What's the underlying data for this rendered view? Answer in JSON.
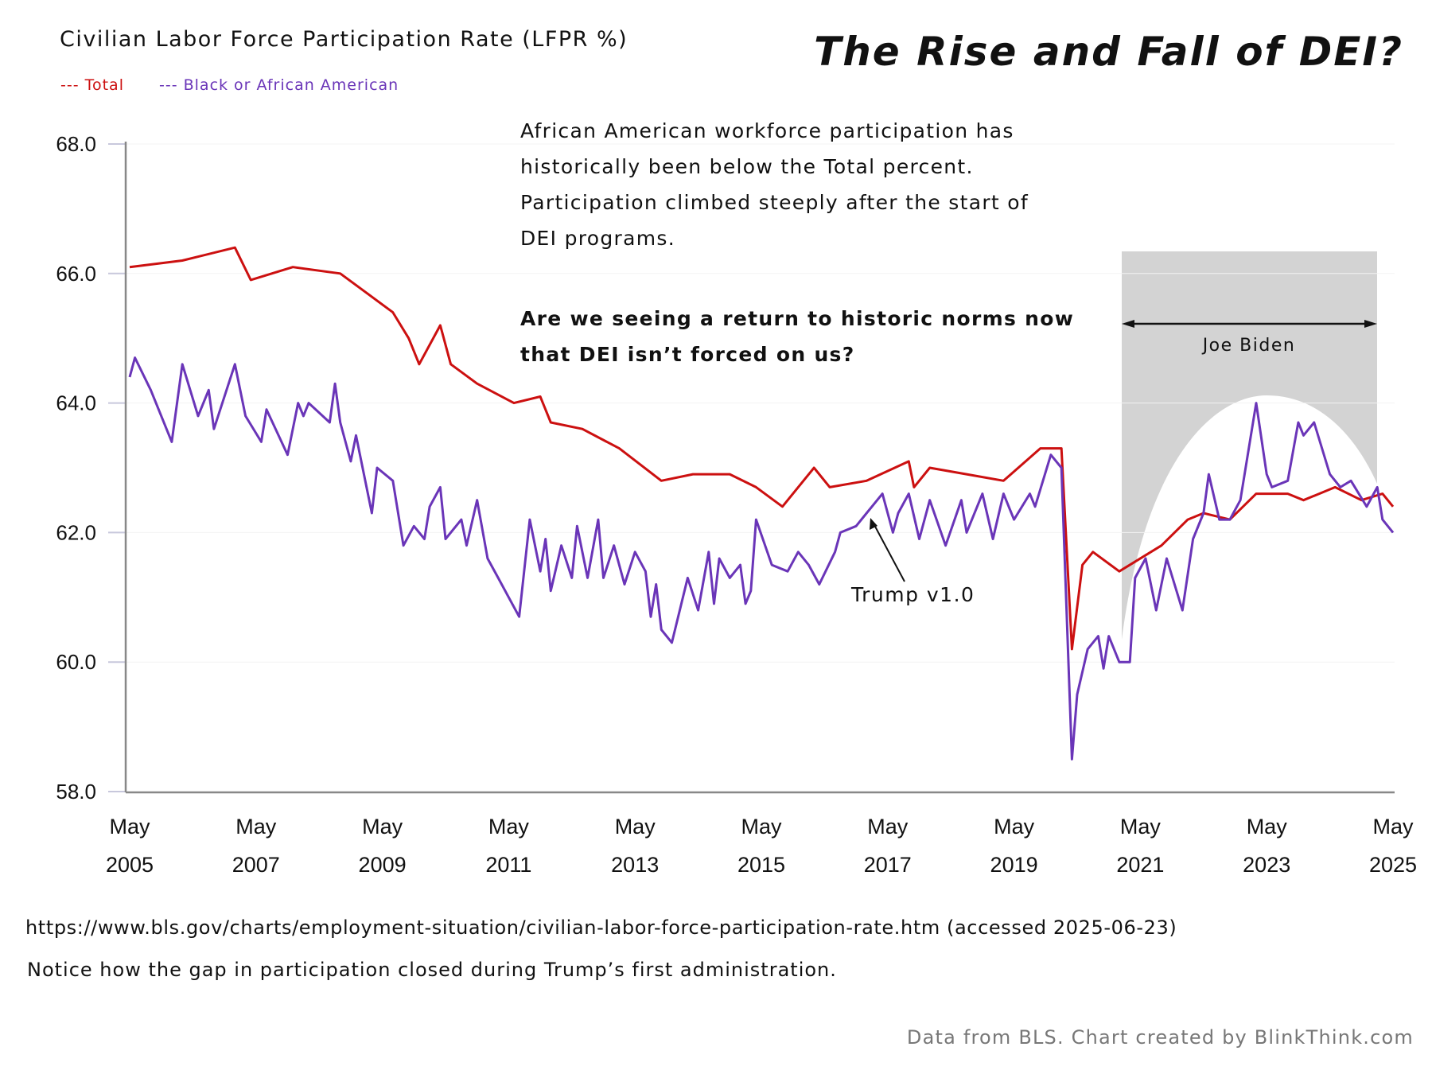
{
  "chart_data": {
    "type": "line",
    "title": "Civilian Labor Force Participation Rate (LFPR %)",
    "headline": "The Rise and Fall of DEI?",
    "x_unit": "months since May 2005",
    "xlim": [
      0,
      240
    ],
    "ylim": [
      58,
      68
    ],
    "y_ticks": [
      "58.0",
      "60.0",
      "62.0",
      "64.0",
      "66.0",
      "68.0"
    ],
    "x_ticks": [
      {
        "month": 0,
        "top": "May",
        "bottom": "2005"
      },
      {
        "month": 24,
        "top": "May",
        "bottom": "2007"
      },
      {
        "month": 48,
        "top": "May",
        "bottom": "2009"
      },
      {
        "month": 72,
        "top": "May",
        "bottom": "2011"
      },
      {
        "month": 96,
        "top": "May",
        "bottom": "2013"
      },
      {
        "month": 120,
        "top": "May",
        "bottom": "2015"
      },
      {
        "month": 144,
        "top": "May",
        "bottom": "2017"
      },
      {
        "month": 168,
        "top": "May",
        "bottom": "2019"
      },
      {
        "month": 192,
        "top": "May",
        "bottom": "2021"
      },
      {
        "month": 216,
        "top": "May",
        "bottom": "2023"
      },
      {
        "month": 240,
        "top": "May",
        "bottom": "2025"
      }
    ],
    "legend": [
      {
        "label": "--- Total",
        "color": "#cc1010"
      },
      {
        "label": "--- Black or African American",
        "color": "#6a35b8"
      }
    ],
    "series": [
      {
        "name": "Total",
        "color": "#cc1010",
        "points": [
          [
            0,
            66.1
          ],
          [
            10,
            66.2
          ],
          [
            20,
            66.4
          ],
          [
            23,
            65.9
          ],
          [
            31,
            66.1
          ],
          [
            40,
            66.0
          ],
          [
            45,
            65.7
          ],
          [
            50,
            65.4
          ],
          [
            53,
            65.0
          ],
          [
            55,
            64.6
          ],
          [
            59,
            65.2
          ],
          [
            61,
            64.6
          ],
          [
            66,
            64.3
          ],
          [
            73,
            64.0
          ],
          [
            78,
            64.1
          ],
          [
            80,
            63.7
          ],
          [
            86,
            63.6
          ],
          [
            93,
            63.3
          ],
          [
            101,
            62.8
          ],
          [
            107,
            62.9
          ],
          [
            114,
            62.9
          ],
          [
            119,
            62.7
          ],
          [
            124,
            62.4
          ],
          [
            130,
            63.0
          ],
          [
            133,
            62.7
          ],
          [
            140,
            62.8
          ],
          [
            148,
            63.1
          ],
          [
            149,
            62.7
          ],
          [
            152,
            63.0
          ],
          [
            159,
            62.9
          ],
          [
            166,
            62.8
          ],
          [
            173,
            63.3
          ],
          [
            177,
            63.3
          ],
          [
            179,
            60.2
          ],
          [
            181,
            61.5
          ],
          [
            183,
            61.7
          ],
          [
            188,
            61.4
          ],
          [
            196,
            61.8
          ],
          [
            201,
            62.2
          ],
          [
            204,
            62.3
          ],
          [
            209,
            62.2
          ],
          [
            214,
            62.6
          ],
          [
            220,
            62.6
          ],
          [
            223,
            62.5
          ],
          [
            229,
            62.7
          ],
          [
            234,
            62.5
          ],
          [
            238,
            62.6
          ],
          [
            240,
            62.4
          ]
        ]
      },
      {
        "name": "Black or African American",
        "color": "#6a35b8",
        "points": [
          [
            0,
            64.4
          ],
          [
            1,
            64.7
          ],
          [
            4,
            64.2
          ],
          [
            7,
            63.6
          ],
          [
            8,
            63.4
          ],
          [
            10,
            64.6
          ],
          [
            13,
            63.8
          ],
          [
            15,
            64.2
          ],
          [
            16,
            63.6
          ],
          [
            20,
            64.6
          ],
          [
            22,
            63.8
          ],
          [
            25,
            63.4
          ],
          [
            26,
            63.9
          ],
          [
            30,
            63.2
          ],
          [
            32,
            64.0
          ],
          [
            33,
            63.8
          ],
          [
            34,
            64.0
          ],
          [
            38,
            63.7
          ],
          [
            39,
            64.3
          ],
          [
            40,
            63.7
          ],
          [
            42,
            63.1
          ],
          [
            43,
            63.5
          ],
          [
            46,
            62.3
          ],
          [
            47,
            63.0
          ],
          [
            50,
            62.8
          ],
          [
            52,
            61.8
          ],
          [
            54,
            62.1
          ],
          [
            56,
            61.9
          ],
          [
            57,
            62.4
          ],
          [
            59,
            62.7
          ],
          [
            60,
            61.9
          ],
          [
            63,
            62.2
          ],
          [
            64,
            61.8
          ],
          [
            66,
            62.5
          ],
          [
            68,
            61.6
          ],
          [
            70,
            61.3
          ],
          [
            72,
            61.0
          ],
          [
            74,
            60.7
          ],
          [
            76,
            62.2
          ],
          [
            78,
            61.4
          ],
          [
            79,
            61.9
          ],
          [
            80,
            61.1
          ],
          [
            82,
            61.8
          ],
          [
            84,
            61.3
          ],
          [
            85,
            62.1
          ],
          [
            87,
            61.3
          ],
          [
            89,
            62.2
          ],
          [
            90,
            61.3
          ],
          [
            92,
            61.8
          ],
          [
            94,
            61.2
          ],
          [
            96,
            61.7
          ],
          [
            98,
            61.4
          ],
          [
            99,
            60.7
          ],
          [
            100,
            61.2
          ],
          [
            101,
            60.5
          ],
          [
            103,
            60.3
          ],
          [
            106,
            61.3
          ],
          [
            108,
            60.8
          ],
          [
            110,
            61.7
          ],
          [
            111,
            60.9
          ],
          [
            112,
            61.6
          ],
          [
            114,
            61.3
          ],
          [
            116,
            61.5
          ],
          [
            117,
            60.9
          ],
          [
            118,
            61.1
          ],
          [
            119,
            62.2
          ],
          [
            122,
            61.5
          ],
          [
            125,
            61.4
          ],
          [
            127,
            61.7
          ],
          [
            129,
            61.5
          ],
          [
            131,
            61.2
          ],
          [
            134,
            61.7
          ],
          [
            135,
            62.0
          ],
          [
            138,
            62.1
          ],
          [
            140,
            62.3
          ],
          [
            143,
            62.6
          ],
          [
            145,
            62.0
          ],
          [
            146,
            62.3
          ],
          [
            148,
            62.6
          ],
          [
            150,
            61.9
          ],
          [
            152,
            62.5
          ],
          [
            155,
            61.8
          ],
          [
            158,
            62.5
          ],
          [
            159,
            62.0
          ],
          [
            162,
            62.6
          ],
          [
            164,
            61.9
          ],
          [
            166,
            62.6
          ],
          [
            168,
            62.2
          ],
          [
            171,
            62.6
          ],
          [
            172,
            62.4
          ],
          [
            175,
            63.2
          ],
          [
            177,
            63.0
          ],
          [
            179,
            58.5
          ],
          [
            180,
            59.5
          ],
          [
            182,
            60.2
          ],
          [
            184,
            60.4
          ],
          [
            185,
            59.9
          ],
          [
            186,
            60.4
          ],
          [
            188,
            60.0
          ],
          [
            190,
            60.0
          ],
          [
            191,
            61.3
          ],
          [
            193,
            61.6
          ],
          [
            195,
            60.8
          ],
          [
            197,
            61.6
          ],
          [
            200,
            60.8
          ],
          [
            202,
            61.9
          ],
          [
            204,
            62.3
          ],
          [
            205,
            62.9
          ],
          [
            207,
            62.2
          ],
          [
            209,
            62.2
          ],
          [
            211,
            62.5
          ],
          [
            214,
            64.0
          ],
          [
            216,
            62.9
          ],
          [
            217,
            62.7
          ],
          [
            220,
            62.8
          ],
          [
            222,
            63.7
          ],
          [
            223,
            63.5
          ],
          [
            225,
            63.7
          ],
          [
            228,
            62.9
          ],
          [
            230,
            62.7
          ],
          [
            232,
            62.8
          ],
          [
            235,
            62.4
          ],
          [
            237,
            62.7
          ],
          [
            238,
            62.2
          ],
          [
            240,
            62.0
          ]
        ]
      }
    ],
    "annotations": {
      "paragraph": [
        "African American workforce participation has",
        "historically been below the Total percent.",
        "Participation climbed steeply after the start of",
        "DEI programs."
      ],
      "question": [
        "Are we seeing a return to historic norms now",
        "that DEI isn’t forced on us?"
      ],
      "trump": "Trump v1.0",
      "biden": "Joe Biden"
    },
    "footer": {
      "source_url": "https://www.bls.gov/charts/employment-situation/civilian-labor-force-participation-rate.htm (accessed 2025-06-23)",
      "note": "Notice how the gap in participation closed during Trump’s first administration.",
      "credit": "Data from BLS. Chart created by BlinkThink.com"
    }
  }
}
